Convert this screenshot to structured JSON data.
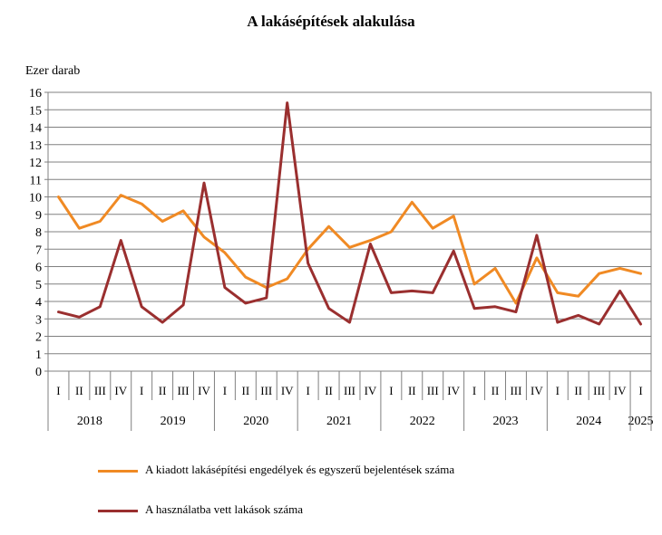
{
  "chart_data": {
    "type": "line",
    "title": "A lakásépítések alakulása",
    "ylabel": "Ezer darab",
    "ylim": [
      0,
      16
    ],
    "yticks": [
      0,
      1,
      2,
      3,
      4,
      5,
      6,
      7,
      8,
      9,
      10,
      11,
      12,
      13,
      14,
      15,
      16
    ],
    "grid": true,
    "legend_position": "bottom",
    "categories": [
      "I",
      "II",
      "III",
      "IV",
      "I",
      "II",
      "III",
      "IV",
      "I",
      "II",
      "III",
      "IV",
      "I",
      "II",
      "III",
      "IV",
      "I",
      "II",
      "III",
      "IV",
      "I",
      "II",
      "III",
      "IV",
      "I",
      "II",
      "III",
      "IV",
      "I"
    ],
    "years": [
      {
        "label": "2018",
        "quarters": 4
      },
      {
        "label": "2019",
        "quarters": 4
      },
      {
        "label": "2020",
        "quarters": 4
      },
      {
        "label": "2021",
        "quarters": 4
      },
      {
        "label": "2022",
        "quarters": 4
      },
      {
        "label": "2023",
        "quarters": 4
      },
      {
        "label": "2024",
        "quarters": 4
      },
      {
        "label": "2025",
        "quarters": 1
      }
    ],
    "series": [
      {
        "name": "A kiadott lakásépítési engedélyek és egyszerű bejelentések száma",
        "color": "#f08a24",
        "values": [
          10.0,
          8.2,
          8.6,
          10.1,
          9.6,
          8.6,
          9.2,
          7.7,
          6.8,
          5.4,
          4.8,
          5.3,
          7.0,
          8.3,
          7.1,
          7.5,
          8.0,
          9.7,
          8.2,
          8.9,
          5.0,
          5.9,
          3.9,
          6.5,
          4.5,
          4.3,
          5.6,
          5.9,
          5.6
        ]
      },
      {
        "name": "A használatba vett lakások száma",
        "color": "#9a2f2f",
        "values": [
          3.4,
          3.1,
          3.7,
          7.5,
          3.7,
          2.8,
          3.8,
          10.8,
          4.8,
          3.9,
          4.2,
          15.4,
          6.2,
          3.6,
          2.8,
          7.3,
          4.5,
          4.6,
          4.5,
          6.9,
          3.6,
          3.7,
          3.4,
          7.8,
          2.8,
          3.2,
          2.7,
          4.6,
          2.7
        ]
      }
    ]
  }
}
